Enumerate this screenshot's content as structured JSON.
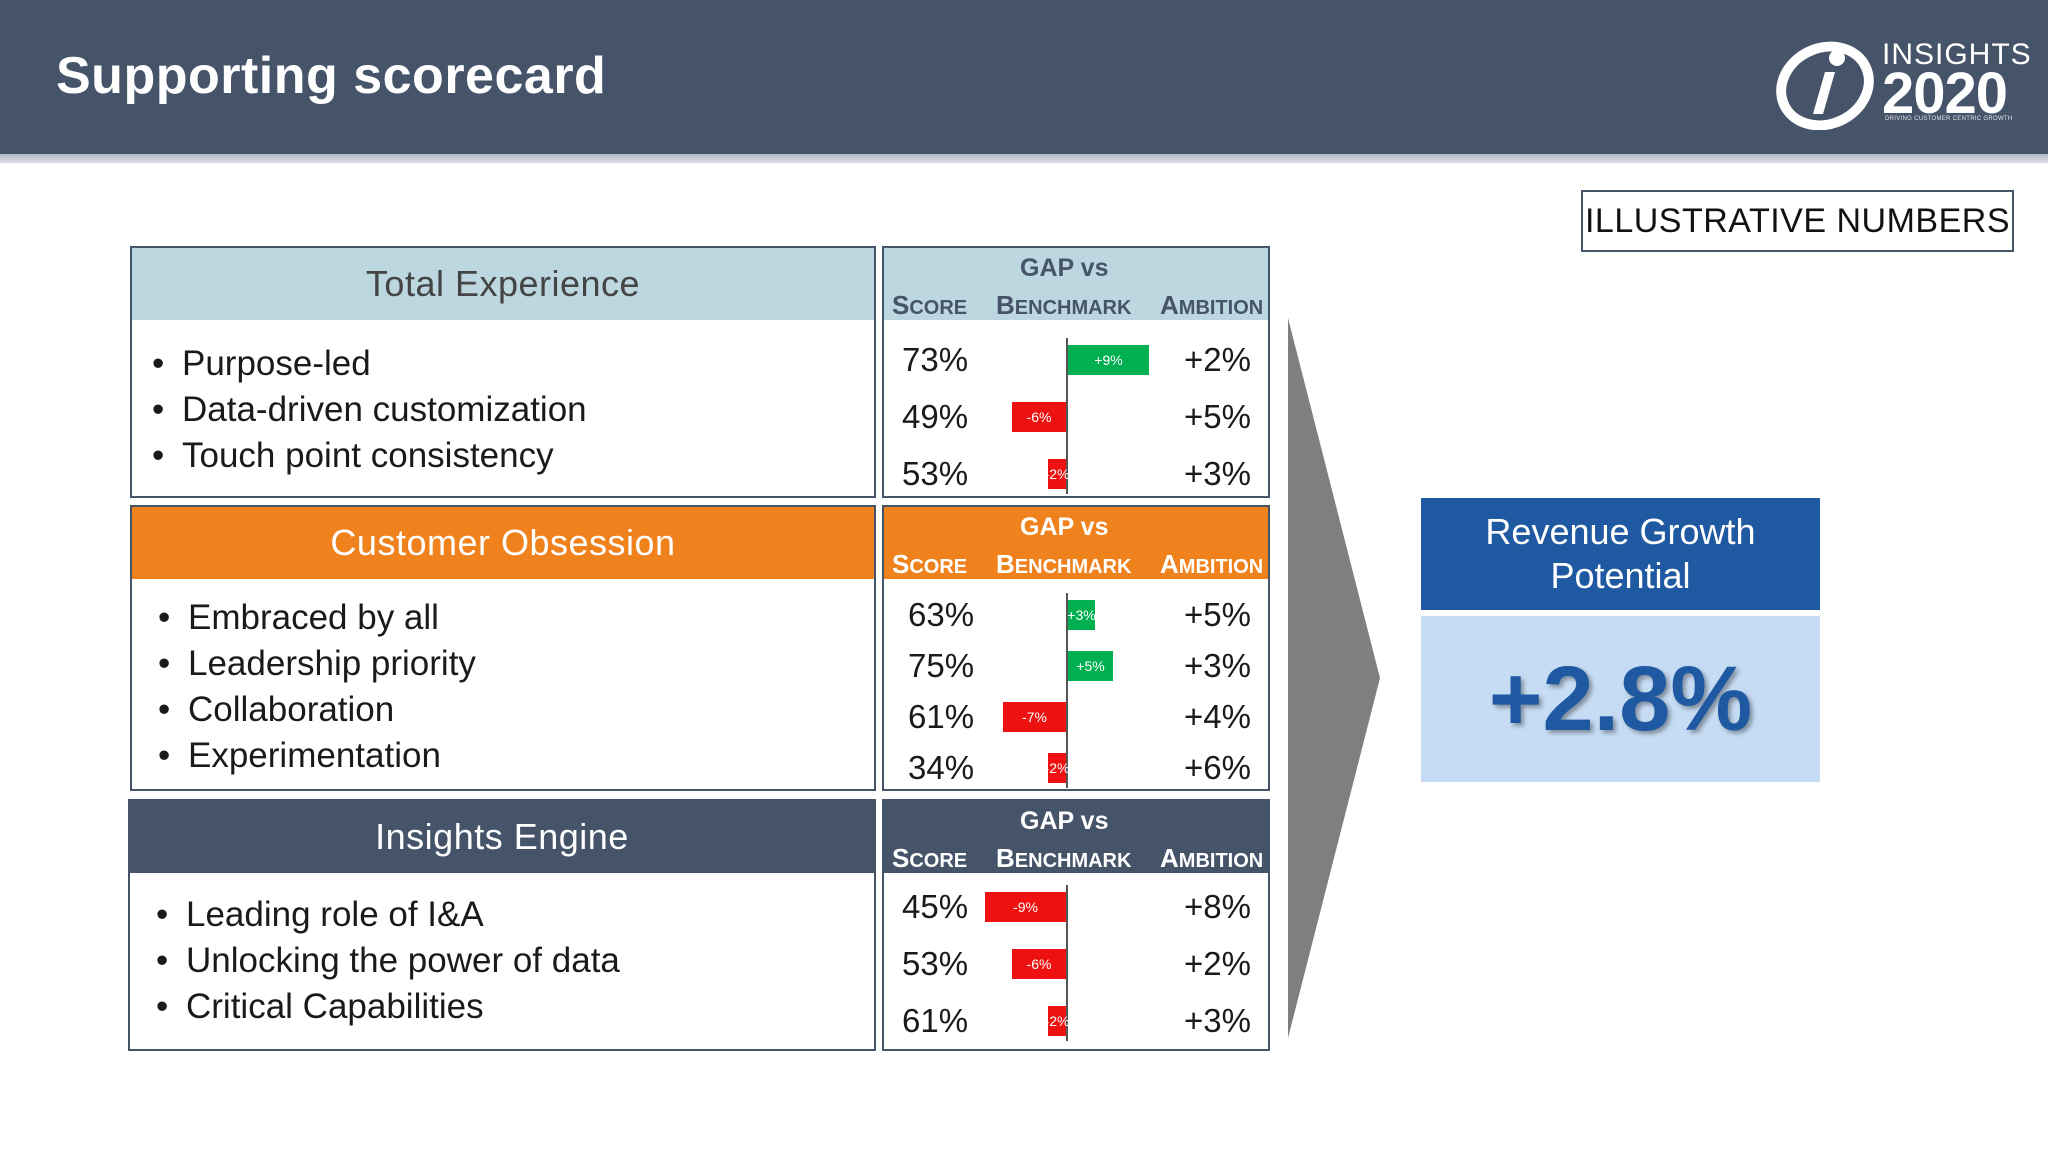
{
  "header": {
    "title": "Supporting scorecard"
  },
  "logo": {
    "word": "INSIGHTS",
    "year": "2020",
    "tagline": "DRIVING CUSTOMER CENTRIC GROWTH",
    "icon": "i-circle-logo-icon"
  },
  "badge": "ILLUSTRATIVE NUMBERS",
  "colors": {
    "header_bg": "#46546a",
    "positive": "#00b050",
    "negative": "#ee1111",
    "accent_blue": "#1f59a2",
    "light_blue": "#c6dcf4"
  },
  "columns": {
    "score": "Score",
    "gap_line1": "GAP vs",
    "gap_line2": "Benchmark",
    "ambition": "Ambition"
  },
  "sections": [
    {
      "title": "Total Experience",
      "head_bg": "#bdd7e1",
      "head_fg": "#444444",
      "bullets": [
        "Purpose-led",
        "Data-driven customization",
        "Touch point consistency"
      ],
      "rows": [
        {
          "score": "73%",
          "gap": 9,
          "gap_label": "+9%",
          "ambition": "+2%"
        },
        {
          "score": "49%",
          "gap": -6,
          "gap_label": "-6%",
          "ambition": "+5%"
        },
        {
          "score": "53%",
          "gap": -2,
          "gap_label": "-2%",
          "ambition": "+3%"
        }
      ]
    },
    {
      "title": "Customer Obsession",
      "head_bg": "#f0821e",
      "head_fg": "#ffffff",
      "bullets": [
        "Embraced by all",
        "Leadership priority",
        "Collaboration",
        "Experimentation"
      ],
      "rows": [
        {
          "score": "63%",
          "gap": 3,
          "gap_label": "+3%",
          "ambition": "+5%"
        },
        {
          "score": "75%",
          "gap": 5,
          "gap_label": "+5%",
          "ambition": "+3%"
        },
        {
          "score": "61%",
          "gap": -7,
          "gap_label": "-7%",
          "ambition": "+4%"
        },
        {
          "score": "34%",
          "gap": -2,
          "gap_label": "-2%",
          "ambition": "+6%"
        }
      ]
    },
    {
      "title": "Insights Engine",
      "head_bg": "#46546a",
      "head_fg": "#ffffff",
      "bullets": [
        "Leading role of I&A",
        "Unlocking the power of data",
        "Critical Capabilities"
      ],
      "rows": [
        {
          "score": "45%",
          "gap": -9,
          "gap_label": "-9%",
          "ambition": "+8%"
        },
        {
          "score": "53%",
          "gap": -6,
          "gap_label": "-6%",
          "ambition": "+2%"
        },
        {
          "score": "61%",
          "gap": -2,
          "gap_label": "-2%",
          "ambition": "+3%"
        }
      ]
    }
  ],
  "revenue": {
    "title_line1": "Revenue Growth",
    "title_line2": "Potential",
    "value": "+2.8%"
  }
}
